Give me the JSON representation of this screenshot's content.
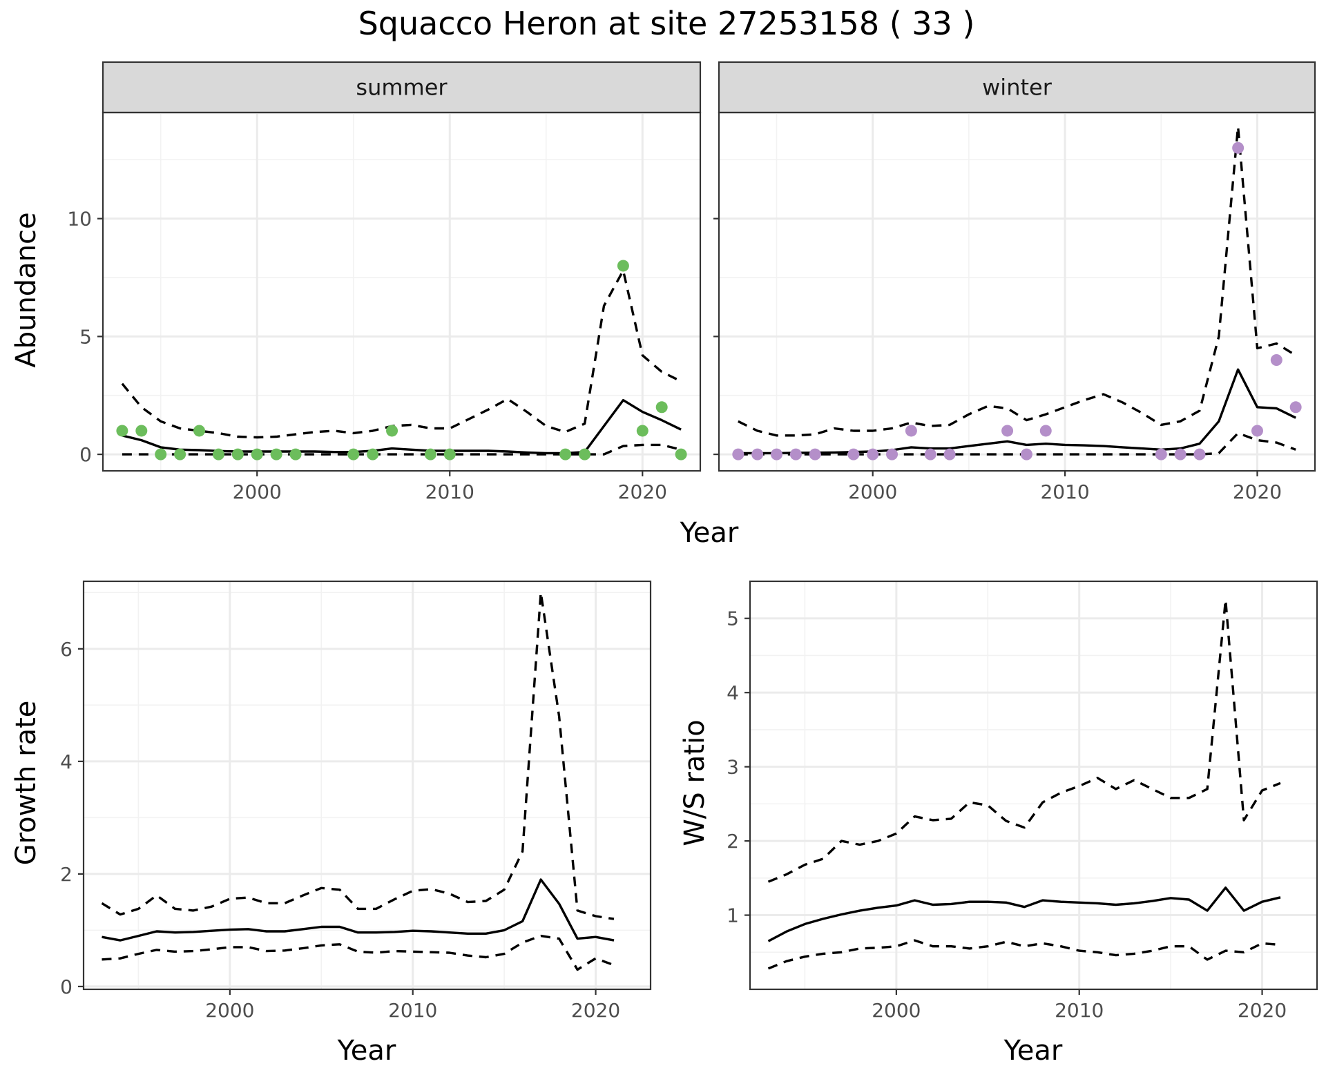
{
  "title": "Squacco Heron at site 27253158 ( 33 )",
  "colors": {
    "summer_points": "#6cbd5c",
    "winter_points": "#b48fc9",
    "strip_bg": "#d9d9d9"
  },
  "chart_data": [
    {
      "id": "abundance-summer",
      "type": "line",
      "strip": "summer",
      "ylabel": "Abundance",
      "xlabel": "Year",
      "xlim": [
        1992,
        2023
      ],
      "ylim": [
        -0.7,
        14.5
      ],
      "x_ticks": [
        2000,
        2010,
        2020
      ],
      "y_ticks": [
        0,
        5,
        10
      ],
      "grid": true,
      "points": {
        "x": [
          1993,
          1994,
          1995,
          1996,
          1997,
          1998,
          1999,
          2000,
          2001,
          2002,
          2005,
          2006,
          2007,
          2009,
          2010,
          2016,
          2017,
          2019,
          2020,
          2021,
          2022
        ],
        "y": [
          1,
          1,
          0,
          0,
          1,
          0,
          0,
          0,
          0,
          0,
          0,
          0,
          1,
          0,
          0,
          0,
          0,
          8,
          1,
          2,
          0
        ]
      },
      "series": [
        {
          "role": "estimate",
          "x": [
            1993,
            1994,
            1995,
            1996,
            1997,
            1998,
            1999,
            2000,
            2001,
            2002,
            2003,
            2004,
            2005,
            2006,
            2007,
            2008,
            2009,
            2010,
            2011,
            2012,
            2013,
            2014,
            2015,
            2016,
            2017,
            2018,
            2019,
            2020,
            2021,
            2022
          ],
          "y": [
            0.8,
            0.6,
            0.3,
            0.2,
            0.18,
            0.14,
            0.12,
            0.12,
            0.12,
            0.12,
            0.12,
            0.1,
            0.1,
            0.15,
            0.25,
            0.2,
            0.15,
            0.15,
            0.15,
            0.15,
            0.12,
            0.08,
            0.05,
            0.05,
            0.1,
            1.2,
            2.3,
            1.8,
            1.45,
            1.05
          ]
        },
        {
          "role": "upper",
          "x": [
            1993,
            1994,
            1995,
            1996,
            1997,
            1998,
            1999,
            2000,
            2001,
            2002,
            2003,
            2004,
            2005,
            2006,
            2007,
            2008,
            2009,
            2010,
            2011,
            2012,
            2013,
            2014,
            2015,
            2016,
            2017,
            2018,
            2019,
            2020,
            2021,
            2022
          ],
          "y": [
            3.0,
            2.0,
            1.4,
            1.1,
            1.0,
            0.9,
            0.75,
            0.72,
            0.75,
            0.85,
            0.95,
            1.0,
            0.9,
            1.0,
            1.2,
            1.25,
            1.1,
            1.1,
            1.5,
            1.9,
            2.35,
            1.8,
            1.2,
            0.95,
            1.3,
            6.3,
            7.8,
            4.2,
            3.5,
            3.1
          ]
        },
        {
          "role": "lower",
          "x": [
            1993,
            1994,
            1995,
            1996,
            1997,
            1998,
            1999,
            2000,
            2001,
            2002,
            2003,
            2004,
            2005,
            2006,
            2007,
            2008,
            2009,
            2010,
            2011,
            2012,
            2013,
            2014,
            2015,
            2016,
            2017,
            2018,
            2019,
            2020,
            2021,
            2022
          ],
          "y": [
            0,
            0,
            0,
            0,
            0,
            0,
            0,
            0,
            0,
            0,
            0,
            0,
            0,
            0,
            0,
            0,
            0,
            0,
            0,
            0,
            0,
            0,
            0,
            0,
            0,
            0,
            0.35,
            0.4,
            0.4,
            0.2
          ]
        }
      ]
    },
    {
      "id": "abundance-winter",
      "type": "line",
      "strip": "winter",
      "ylabel": "",
      "xlabel": "Year",
      "xlim": [
        1992,
        2023
      ],
      "ylim": [
        -0.7,
        14.5
      ],
      "x_ticks": [
        2000,
        2010,
        2020
      ],
      "y_ticks": [
        0,
        5,
        10
      ],
      "grid": true,
      "points": {
        "x": [
          1993,
          1994,
          1995,
          1996,
          1997,
          1999,
          2000,
          2001,
          2002,
          2003,
          2004,
          2007,
          2008,
          2009,
          2015,
          2016,
          2017,
          2019,
          2020,
          2021,
          2022
        ],
        "y": [
          0,
          0,
          0,
          0,
          0,
          0,
          0,
          0,
          1,
          0,
          0,
          1,
          0,
          1,
          0,
          0,
          0,
          13,
          1,
          4,
          2
        ]
      },
      "series": [
        {
          "role": "estimate",
          "x": [
            1993,
            1994,
            1995,
            1996,
            1997,
            1998,
            1999,
            2000,
            2001,
            2002,
            2003,
            2004,
            2005,
            2006,
            2007,
            2008,
            2009,
            2010,
            2011,
            2012,
            2013,
            2014,
            2015,
            2016,
            2017,
            2018,
            2019,
            2020,
            2021,
            2022
          ],
          "y": [
            0.05,
            0.05,
            0.05,
            0.06,
            0.07,
            0.08,
            0.1,
            0.12,
            0.18,
            0.3,
            0.25,
            0.25,
            0.35,
            0.45,
            0.55,
            0.4,
            0.45,
            0.4,
            0.38,
            0.35,
            0.3,
            0.25,
            0.2,
            0.25,
            0.45,
            1.4,
            3.6,
            2.0,
            1.95,
            1.55
          ]
        },
        {
          "role": "upper",
          "x": [
            1993,
            1994,
            1995,
            1996,
            1997,
            1998,
            1999,
            2000,
            2001,
            2002,
            2003,
            2004,
            2005,
            2006,
            2007,
            2008,
            2009,
            2010,
            2011,
            2012,
            2013,
            2014,
            2015,
            2016,
            2017,
            2018,
            2019,
            2020,
            2021,
            2022
          ],
          "y": [
            1.4,
            1.0,
            0.8,
            0.8,
            0.85,
            1.1,
            1.0,
            1.0,
            1.1,
            1.35,
            1.2,
            1.25,
            1.7,
            2.05,
            1.95,
            1.45,
            1.7,
            2.0,
            2.3,
            2.55,
            2.2,
            1.75,
            1.25,
            1.4,
            1.85,
            5.0,
            13.9,
            4.5,
            4.7,
            4.2
          ]
        },
        {
          "role": "lower",
          "x": [
            1993,
            1994,
            1995,
            1996,
            1997,
            1998,
            1999,
            2000,
            2001,
            2002,
            2003,
            2004,
            2005,
            2006,
            2007,
            2008,
            2009,
            2010,
            2011,
            2012,
            2013,
            2014,
            2015,
            2016,
            2017,
            2018,
            2019,
            2020,
            2021,
            2022
          ],
          "y": [
            0,
            0,
            0,
            0,
            0,
            0,
            0,
            0,
            0,
            0,
            0,
            0,
            0,
            0,
            0,
            0,
            0,
            0,
            0,
            0,
            0,
            0,
            0,
            0,
            0,
            0.05,
            0.9,
            0.6,
            0.5,
            0.2
          ]
        }
      ]
    },
    {
      "id": "growth-rate",
      "type": "line",
      "ylabel": "Growth rate",
      "xlabel": "Year",
      "xlim": [
        1992,
        2023
      ],
      "ylim": [
        -0.05,
        7.2
      ],
      "x_ticks": [
        2000,
        2010,
        2020
      ],
      "y_ticks": [
        0,
        2,
        4,
        6
      ],
      "grid": true,
      "series": [
        {
          "role": "estimate",
          "x": [
            1993,
            1994,
            1995,
            1996,
            1997,
            1998,
            1999,
            2000,
            2001,
            2002,
            2003,
            2004,
            2005,
            2006,
            2007,
            2008,
            2009,
            2010,
            2011,
            2012,
            2013,
            2014,
            2015,
            2016,
            2017,
            2018,
            2019,
            2020,
            2021
          ],
          "y": [
            0.88,
            0.82,
            0.9,
            0.98,
            0.96,
            0.97,
            0.99,
            1.01,
            1.02,
            0.98,
            0.98,
            1.02,
            1.06,
            1.06,
            0.96,
            0.96,
            0.97,
            0.99,
            0.98,
            0.96,
            0.94,
            0.94,
            1.0,
            1.16,
            1.9,
            1.47,
            0.85,
            0.88,
            0.82
          ]
        },
        {
          "role": "upper",
          "x": [
            1993,
            1994,
            1995,
            1996,
            1997,
            1998,
            1999,
            2000,
            2001,
            2002,
            2003,
            2004,
            2005,
            2006,
            2007,
            2008,
            2009,
            2010,
            2011,
            2012,
            2013,
            2014,
            2015,
            2016,
            2017,
            2018,
            2019,
            2020,
            2021
          ],
          "y": [
            1.48,
            1.28,
            1.38,
            1.62,
            1.38,
            1.35,
            1.42,
            1.56,
            1.58,
            1.48,
            1.48,
            1.62,
            1.75,
            1.72,
            1.38,
            1.38,
            1.55,
            1.7,
            1.73,
            1.65,
            1.5,
            1.52,
            1.72,
            2.4,
            7.0,
            4.8,
            1.35,
            1.25,
            1.2
          ]
        },
        {
          "role": "lower",
          "x": [
            1993,
            1994,
            1995,
            1996,
            1997,
            1998,
            1999,
            2000,
            2001,
            2002,
            2003,
            2004,
            2005,
            2006,
            2007,
            2008,
            2009,
            2010,
            2011,
            2012,
            2013,
            2014,
            2015,
            2016,
            2017,
            2018,
            2019,
            2020,
            2021
          ],
          "y": [
            0.48,
            0.5,
            0.58,
            0.65,
            0.62,
            0.63,
            0.66,
            0.7,
            0.7,
            0.63,
            0.64,
            0.68,
            0.73,
            0.75,
            0.62,
            0.6,
            0.63,
            0.62,
            0.61,
            0.6,
            0.55,
            0.52,
            0.58,
            0.78,
            0.9,
            0.85,
            0.3,
            0.5,
            0.38
          ]
        }
      ]
    },
    {
      "id": "ws-ratio",
      "type": "line",
      "ylabel": "W/S ratio",
      "xlabel": "Year",
      "xlim": [
        1992,
        2023
      ],
      "ylim": [
        0.0,
        5.5
      ],
      "x_ticks": [
        2000,
        2010,
        2020
      ],
      "y_ticks": [
        1,
        2,
        3,
        4,
        5
      ],
      "grid": true,
      "series": [
        {
          "role": "estimate",
          "x": [
            1993,
            1994,
            1995,
            1996,
            1997,
            1998,
            1999,
            2000,
            2001,
            2002,
            2003,
            2004,
            2005,
            2006,
            2007,
            2008,
            2009,
            2010,
            2011,
            2012,
            2013,
            2014,
            2015,
            2016,
            2017,
            2018,
            2019,
            2020,
            2021
          ],
          "y": [
            0.65,
            0.78,
            0.88,
            0.95,
            1.01,
            1.06,
            1.1,
            1.13,
            1.2,
            1.14,
            1.15,
            1.18,
            1.18,
            1.17,
            1.11,
            1.2,
            1.18,
            1.17,
            1.16,
            1.14,
            1.16,
            1.19,
            1.23,
            1.21,
            1.06,
            1.37,
            1.06,
            1.18,
            1.24
          ]
        },
        {
          "role": "upper",
          "x": [
            1993,
            1994,
            1995,
            1996,
            1997,
            1998,
            1999,
            2000,
            2001,
            2002,
            2003,
            2004,
            2005,
            2006,
            2007,
            2008,
            2009,
            2010,
            2011,
            2012,
            2013,
            2014,
            2015,
            2016,
            2017,
            2018,
            2019,
            2020,
            2021
          ],
          "y": [
            1.45,
            1.55,
            1.68,
            1.76,
            2.0,
            1.95,
            2.0,
            2.1,
            2.33,
            2.28,
            2.3,
            2.52,
            2.48,
            2.27,
            2.18,
            2.52,
            2.65,
            2.74,
            2.85,
            2.7,
            2.82,
            2.7,
            2.58,
            2.58,
            2.7,
            5.25,
            2.28,
            2.68,
            2.78
          ]
        },
        {
          "role": "lower",
          "x": [
            1993,
            1994,
            1995,
            1996,
            1997,
            1998,
            1999,
            2000,
            2001,
            2002,
            2003,
            2004,
            2005,
            2006,
            2007,
            2008,
            2009,
            2010,
            2011,
            2012,
            2013,
            2014,
            2015,
            2016,
            2017,
            2018,
            2019,
            2020,
            2021
          ],
          "y": [
            0.28,
            0.38,
            0.44,
            0.48,
            0.5,
            0.55,
            0.56,
            0.58,
            0.66,
            0.58,
            0.58,
            0.55,
            0.58,
            0.64,
            0.58,
            0.62,
            0.58,
            0.52,
            0.5,
            0.46,
            0.48,
            0.52,
            0.58,
            0.58,
            0.4,
            0.52,
            0.5,
            0.62,
            0.6
          ]
        }
      ]
    }
  ]
}
